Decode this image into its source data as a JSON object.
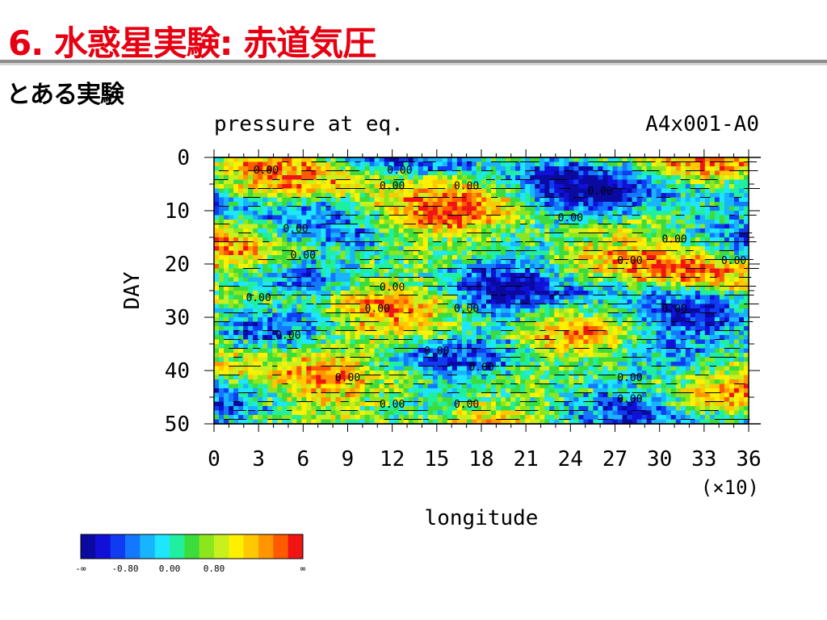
{
  "slide": {
    "title": "6. 水惑星実験: 赤道気圧",
    "subtitle": "とある実験"
  },
  "chart_data": {
    "type": "heatmap",
    "title": "pressure at eq.",
    "run_label": "A4x001-A0",
    "xlabel": "longitude",
    "x_multiplier": "(×10)",
    "ylabel": "DAY",
    "xlim": [
      0,
      36
    ],
    "ylim": [
      0,
      50
    ],
    "y_inverted": true,
    "x_ticks": [
      "0",
      "3",
      "6",
      "9",
      "12",
      "15",
      "18",
      "21",
      "24",
      "27",
      "30",
      "33",
      "36"
    ],
    "y_ticks": [
      "0",
      "10",
      "20",
      "30",
      "40",
      "50"
    ],
    "contour_labels": [
      {
        "text": "0.00",
        "x": 3.5,
        "y": 3
      },
      {
        "text": "0.00",
        "x": 12.5,
        "y": 3
      },
      {
        "text": "0.00",
        "x": 12,
        "y": 6
      },
      {
        "text": "0.00",
        "x": 17,
        "y": 6
      },
      {
        "text": "0.00",
        "x": 26,
        "y": 7
      },
      {
        "text": "0.00",
        "x": 24,
        "y": 12
      },
      {
        "text": "0.00",
        "x": 5.5,
        "y": 14
      },
      {
        "text": "0.00",
        "x": 31,
        "y": 16
      },
      {
        "text": "0.00",
        "x": 6,
        "y": 19
      },
      {
        "text": "0.00",
        "x": 28,
        "y": 20
      },
      {
        "text": "0.00",
        "x": 35,
        "y": 20
      },
      {
        "text": "0.00",
        "x": 12,
        "y": 25
      },
      {
        "text": "0.00",
        "x": 3,
        "y": 27
      },
      {
        "text": "0.00",
        "x": 11,
        "y": 29
      },
      {
        "text": "0.00",
        "x": 17,
        "y": 29
      },
      {
        "text": "0.00",
        "x": 31,
        "y": 29
      },
      {
        "text": "0.00",
        "x": 5,
        "y": 34
      },
      {
        "text": "0.00",
        "x": 15,
        "y": 37
      },
      {
        "text": "0.00",
        "x": 18,
        "y": 40
      },
      {
        "text": "0.00",
        "x": 28,
        "y": 42
      },
      {
        "text": "0.00",
        "x": 9,
        "y": 42
      },
      {
        "text": "0.00",
        "x": 28,
        "y": 46
      },
      {
        "text": "0.00",
        "x": 12,
        "y": 47
      },
      {
        "text": "0.00",
        "x": 17,
        "y": 47
      }
    ],
    "colorbar": {
      "colors": [
        "#0a0aa0",
        "#1010d8",
        "#0f3cf0",
        "#1478ff",
        "#19b4ff",
        "#1ee6ff",
        "#1ef0a0",
        "#3cdc3c",
        "#8ce61e",
        "#c8f01e",
        "#fff000",
        "#ffc800",
        "#ff9600",
        "#ff5a00",
        "#f01414"
      ],
      "tick_labels": [
        "-∞",
        "-0.80",
        "0.00",
        "0.80",
        "∞"
      ]
    }
  }
}
